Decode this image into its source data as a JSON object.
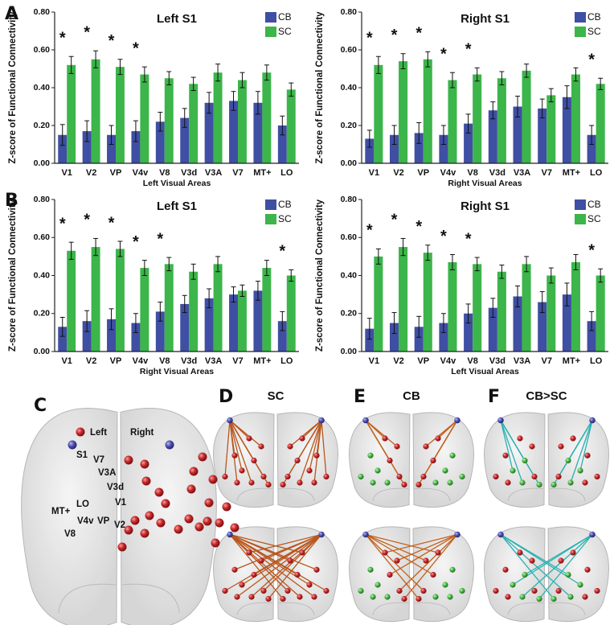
{
  "chart_data": [
    {
      "type": "bar",
      "title": "Left S1",
      "x_label": "Left Visual Areas",
      "y_label": "Z-score of Functional Connectivity",
      "categories": [
        "V1",
        "V2",
        "VP",
        "V4v",
        "V8",
        "V3d",
        "V3A",
        "V7",
        "MT+",
        "LO"
      ],
      "series": [
        {
          "name": "CB",
          "color": "#3f4fa3",
          "values": [
            0.15,
            0.17,
            0.15,
            0.17,
            0.22,
            0.24,
            0.32,
            0.33,
            0.32,
            0.2
          ],
          "errors": [
            0.055,
            0.055,
            0.05,
            0.055,
            0.05,
            0.05,
            0.055,
            0.05,
            0.06,
            0.05
          ]
        },
        {
          "name": "SC",
          "color": "#3cb54a",
          "values": [
            0.52,
            0.55,
            0.51,
            0.47,
            0.45,
            0.42,
            0.48,
            0.44,
            0.48,
            0.39
          ],
          "errors": [
            0.045,
            0.045,
            0.04,
            0.04,
            0.035,
            0.035,
            0.045,
            0.04,
            0.04,
            0.035
          ]
        }
      ],
      "significance": [
        "*",
        "*",
        "*",
        "*",
        null,
        null,
        null,
        null,
        null,
        null
      ],
      "ylim": [
        0,
        0.8
      ],
      "yticks": [
        {
          "value": 0,
          "label": "0.00"
        },
        {
          "value": 0.2,
          "label": "0.20"
        },
        {
          "value": 0.4,
          "label": "0.40"
        },
        {
          "value": 0.6,
          "label": "0.60"
        },
        {
          "value": 0.8,
          "label": "0.80"
        }
      ],
      "legend": "upper right"
    },
    {
      "type": "bar",
      "title": "Right S1",
      "x_label": "Right Visual Areas",
      "y_label": "Z-score of Functional Connectivity",
      "categories": [
        "V1",
        "V2",
        "VP",
        "V4v",
        "V8",
        "V3d",
        "V3A",
        "V7",
        "MT+",
        "LO"
      ],
      "series": [
        {
          "name": "CB",
          "color": "#3f4fa3",
          "values": [
            0.13,
            0.15,
            0.16,
            0.15,
            0.21,
            0.28,
            0.3,
            0.29,
            0.35,
            0.15
          ],
          "errors": [
            0.045,
            0.05,
            0.055,
            0.05,
            0.05,
            0.045,
            0.055,
            0.05,
            0.06,
            0.05
          ]
        },
        {
          "name": "SC",
          "color": "#3cb54a",
          "values": [
            0.52,
            0.54,
            0.55,
            0.44,
            0.47,
            0.45,
            0.49,
            0.36,
            0.47,
            0.42
          ],
          "errors": [
            0.045,
            0.04,
            0.04,
            0.04,
            0.035,
            0.035,
            0.035,
            0.035,
            0.035,
            0.03
          ]
        }
      ],
      "significance": [
        "*",
        "*",
        "*",
        "*",
        "*",
        null,
        null,
        null,
        null,
        "*"
      ],
      "ylim": [
        0,
        0.8
      ],
      "yticks": [
        {
          "value": 0,
          "label": "0.00"
        },
        {
          "value": 0.2,
          "label": "0.20"
        },
        {
          "value": 0.4,
          "label": "0.40"
        },
        {
          "value": 0.6,
          "label": "0.60"
        },
        {
          "value": 0.8,
          "label": "0.80"
        }
      ],
      "legend": "upper right"
    },
    {
      "type": "bar",
      "title": "Left S1",
      "x_label": "Right Visual Areas",
      "y_label": "Z-score of Functional Connectivity",
      "categories": [
        "V1",
        "V2",
        "VP",
        "V4v",
        "V8",
        "V3d",
        "V3A",
        "V7",
        "MT+",
        "LO"
      ],
      "series": [
        {
          "name": "CB",
          "color": "#3f4fa3",
          "values": [
            0.13,
            0.16,
            0.17,
            0.15,
            0.21,
            0.25,
            0.28,
            0.3,
            0.32,
            0.16
          ],
          "errors": [
            0.05,
            0.055,
            0.055,
            0.05,
            0.05,
            0.045,
            0.05,
            0.04,
            0.05,
            0.05
          ]
        },
        {
          "name": "SC",
          "color": "#3cb54a",
          "values": [
            0.53,
            0.55,
            0.54,
            0.44,
            0.46,
            0.42,
            0.46,
            0.32,
            0.44,
            0.4
          ],
          "errors": [
            0.045,
            0.045,
            0.04,
            0.04,
            0.035,
            0.04,
            0.04,
            0.03,
            0.04,
            0.03
          ]
        }
      ],
      "significance": [
        "*",
        "*",
        "*",
        "*",
        "*",
        null,
        null,
        null,
        null,
        "*"
      ],
      "ylim": [
        0,
        0.8
      ],
      "yticks": [
        {
          "value": 0,
          "label": "0.00"
        },
        {
          "value": 0.2,
          "label": "0.20"
        },
        {
          "value": 0.4,
          "label": "0.40"
        },
        {
          "value": 0.6,
          "label": "0.60"
        },
        {
          "value": 0.8,
          "label": "0.80"
        }
      ],
      "legend": "upper right"
    },
    {
      "type": "bar",
      "title": "Right S1",
      "x_label": "Left Visual Areas",
      "y_label": "Z-score of Functional Connectivity",
      "categories": [
        "V1",
        "V2",
        "VP",
        "V4v",
        "V8",
        "V3d",
        "V3A",
        "V7",
        "MT+",
        "LO"
      ],
      "series": [
        {
          "name": "CB",
          "color": "#3f4fa3",
          "values": [
            0.12,
            0.15,
            0.13,
            0.15,
            0.2,
            0.23,
            0.29,
            0.26,
            0.3,
            0.16
          ],
          "errors": [
            0.055,
            0.055,
            0.055,
            0.05,
            0.05,
            0.05,
            0.055,
            0.055,
            0.06,
            0.05
          ]
        },
        {
          "name": "SC",
          "color": "#3cb54a",
          "values": [
            0.5,
            0.55,
            0.52,
            0.47,
            0.46,
            0.42,
            0.46,
            0.4,
            0.47,
            0.4
          ],
          "errors": [
            0.04,
            0.045,
            0.04,
            0.04,
            0.035,
            0.035,
            0.04,
            0.04,
            0.04,
            0.035
          ]
        }
      ],
      "significance": [
        "*",
        "*",
        "*",
        "*",
        "*",
        null,
        null,
        null,
        null,
        "*"
      ],
      "ylim": [
        0,
        0.8
      ],
      "yticks": [
        {
          "value": 0,
          "label": "0.00"
        },
        {
          "value": 0.2,
          "label": "0.20"
        },
        {
          "value": 0.4,
          "label": "0.40"
        },
        {
          "value": 0.6,
          "label": "0.60"
        },
        {
          "value": 0.8,
          "label": "0.80"
        }
      ],
      "legend": "upper right"
    }
  ],
  "panel_labels": [
    "A",
    "B",
    "C",
    "D",
    "E",
    "F"
  ],
  "brain_titles": [
    "SC",
    "CB",
    "CB>SC"
  ],
  "hemispheres": [
    "Left",
    "Right"
  ],
  "regions": [
    "S1",
    "V7",
    "V3A",
    "V3d",
    "V1",
    "LO",
    "MT+",
    "V4v",
    "VP",
    "V2",
    "V8"
  ]
}
